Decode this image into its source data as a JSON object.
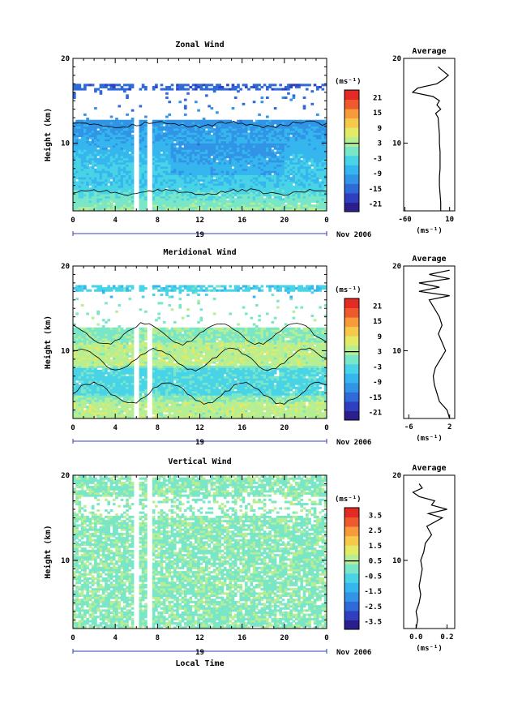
{
  "chart_data": [
    {
      "type": "heatmap",
      "title": "Zonal Wind",
      "ylabel": "Height (km)",
      "xlabel": "",
      "xlim": [
        0,
        24
      ],
      "ylim": [
        2,
        20
      ],
      "xticks": [
        "0",
        "4",
        "8",
        "12",
        "16",
        "20",
        "0"
      ],
      "xtick_values": [
        0,
        4,
        8,
        12,
        16,
        20,
        24
      ],
      "yticks": [
        "10",
        "20"
      ],
      "ytick_values": [
        10,
        20
      ],
      "date_day": "19",
      "date_month": "Nov 2006",
      "colorbar_unit": "(ms⁻¹)",
      "colorbar_ticks": [
        "21",
        "15",
        "9",
        "3",
        "-3",
        "-9",
        "-15",
        "-21"
      ],
      "colorbar_range": [
        -24,
        24
      ],
      "data_gaps_hours": [
        [
          5.8,
          6.2
        ],
        [
          7.0,
          7.4
        ]
      ],
      "average_profile": {
        "title": "Average",
        "unit": "(ms⁻¹)",
        "xticks": [
          "-60",
          "10"
        ],
        "xtick_values": [
          -60,
          10
        ],
        "xlim": [
          -62,
          18
        ],
        "heights": [
          2,
          3,
          4,
          5,
          6,
          7,
          8,
          9,
          10,
          11,
          12,
          13,
          13.5,
          14,
          14.5,
          15,
          15.5,
          16,
          16.5,
          17,
          17.5,
          18,
          18.5,
          19
        ],
        "values": [
          -4,
          -4,
          -5,
          -6,
          -6,
          -5,
          -5,
          -5,
          -6,
          -6,
          -7,
          -8,
          -12,
          -4,
          -10,
          -6,
          -16,
          -48,
          -40,
          -10,
          0,
          8,
          0,
          -8
        ]
      }
    },
    {
      "type": "heatmap",
      "title": "Meridional Wind",
      "ylabel": "Height (km)",
      "xlabel": "",
      "xlim": [
        0,
        24
      ],
      "ylim": [
        2,
        20
      ],
      "xticks": [
        "0",
        "4",
        "8",
        "12",
        "16",
        "20",
        "0"
      ],
      "xtick_values": [
        0,
        4,
        8,
        12,
        16,
        20,
        24
      ],
      "yticks": [
        "10",
        "20"
      ],
      "ytick_values": [
        10,
        20
      ],
      "date_day": "19",
      "date_month": "Nov 2006",
      "colorbar_unit": "(ms⁻¹)",
      "colorbar_ticks": [
        "21",
        "15",
        "9",
        "3",
        "-3",
        "-9",
        "-15",
        "-21"
      ],
      "colorbar_range": [
        -24,
        24
      ],
      "data_gaps_hours": [
        [
          5.8,
          6.2
        ],
        [
          7.0,
          7.4
        ]
      ],
      "average_profile": {
        "title": "Average",
        "unit": "(ms⁻¹)",
        "xticks": [
          "-6",
          "2"
        ],
        "xtick_values": [
          -6,
          2
        ],
        "xlim": [
          -7,
          3
        ],
        "heights": [
          2,
          3,
          4,
          5,
          6,
          7,
          8,
          9,
          10,
          11,
          12,
          13,
          14,
          15,
          16,
          16.5,
          17,
          17.5,
          18,
          18.5,
          19,
          19.5
        ],
        "values": [
          2,
          1.5,
          0,
          -0.5,
          -1,
          -1.2,
          -0.8,
          0.2,
          1.2,
          0.5,
          -0.2,
          0.5,
          0,
          -1,
          -2,
          2,
          -4,
          0,
          -4,
          2,
          -2,
          2
        ]
      }
    },
    {
      "type": "heatmap",
      "title": "Vertical Wind",
      "ylabel": "Height (km)",
      "xlabel": "Local Time",
      "xlim": [
        0,
        24
      ],
      "ylim": [
        2,
        20
      ],
      "xticks": [
        "0",
        "4",
        "8",
        "12",
        "16",
        "20",
        "0"
      ],
      "xtick_values": [
        0,
        4,
        8,
        12,
        16,
        20,
        24
      ],
      "yticks": [
        "10",
        "20"
      ],
      "ytick_values": [
        10,
        20
      ],
      "date_day": "19",
      "date_month": "Nov 2006",
      "colorbar_unit": "(ms⁻¹)",
      "colorbar_ticks": [
        "3.5",
        "2.5",
        "1.5",
        "0.5",
        "-0.5",
        "-1.5",
        "-2.5",
        "-3.5"
      ],
      "colorbar_range": [
        -4,
        4
      ],
      "data_gaps_hours": [
        [
          5.8,
          6.2
        ],
        [
          7.0,
          7.4
        ]
      ],
      "average_profile": {
        "title": "Average",
        "unit": "(ms⁻¹)",
        "xticks": [
          "0.0",
          "0.2"
        ],
        "xtick_values": [
          0.0,
          0.2
        ],
        "xlim": [
          -0.08,
          0.25
        ],
        "heights": [
          2,
          3,
          4,
          5,
          6,
          7,
          8,
          9,
          10,
          11,
          12,
          13,
          14,
          15,
          15.5,
          16,
          16.5,
          17,
          17.5,
          18,
          18.5,
          19
        ],
        "values": [
          0.0,
          0.01,
          0.0,
          0.02,
          0.03,
          0.02,
          0.03,
          0.04,
          0.03,
          0.05,
          0.06,
          0.1,
          0.07,
          0.17,
          0.08,
          0.2,
          0.1,
          0.12,
          0.02,
          -0.02,
          0.04,
          0.02
        ]
      }
    }
  ]
}
